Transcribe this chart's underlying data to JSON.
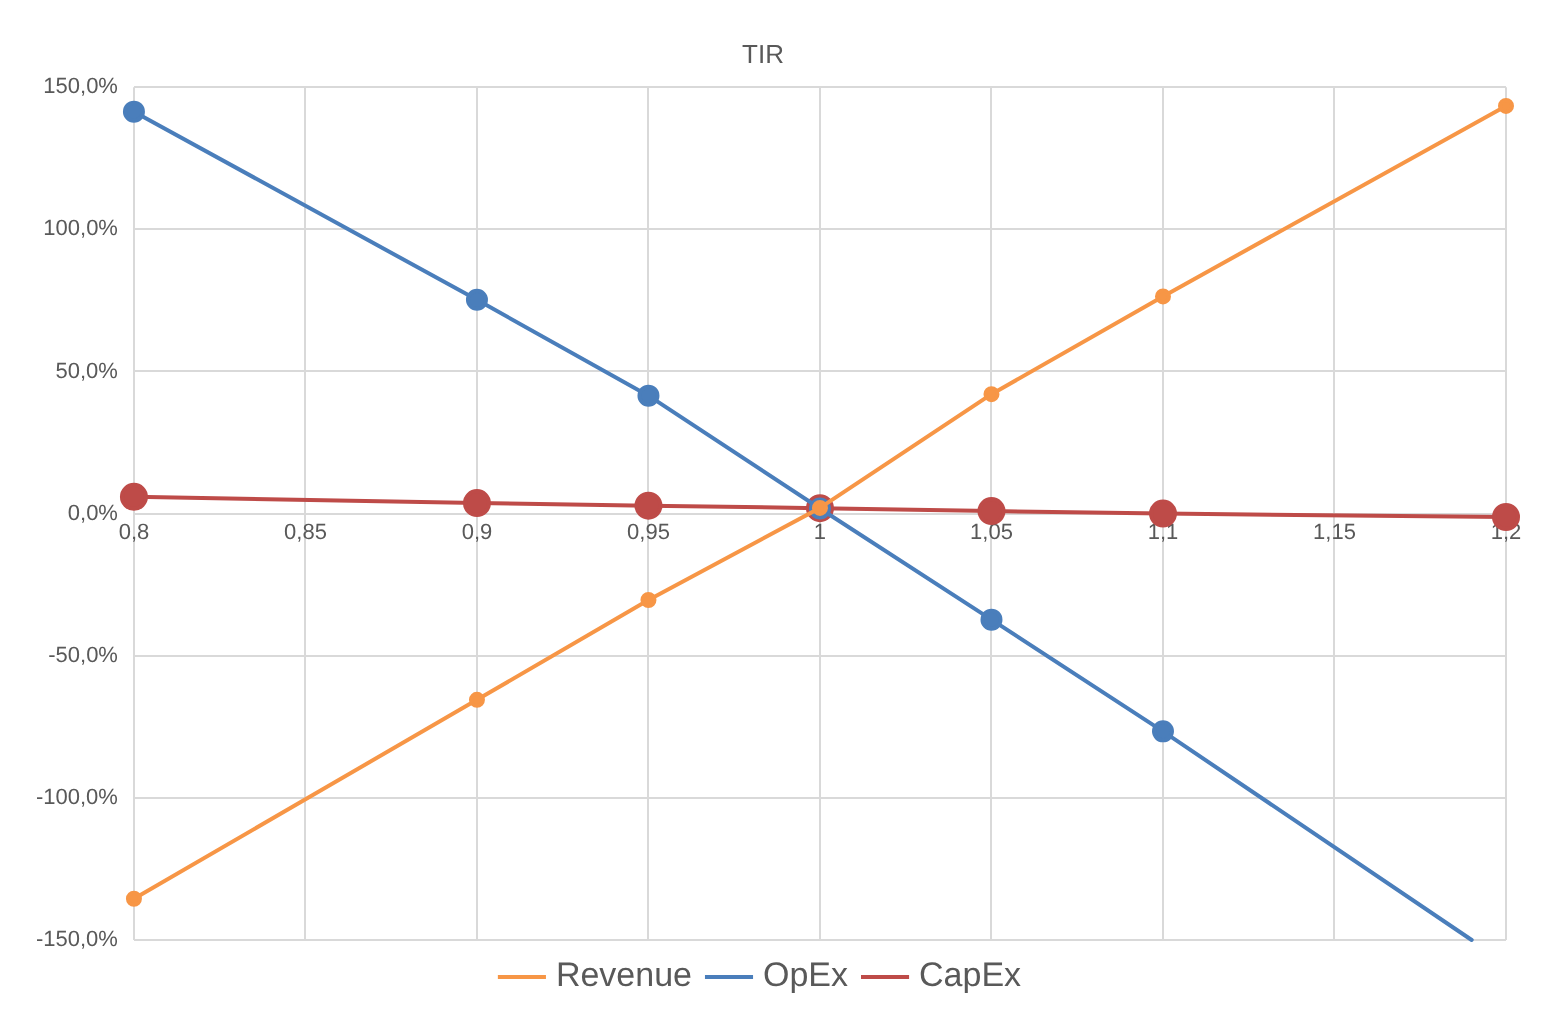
{
  "chart_data": {
    "type": "line",
    "title": "TIR",
    "x": [
      0.8,
      0.9,
      0.95,
      1,
      1.05,
      1.1,
      1.2
    ],
    "series": [
      {
        "name": "Revenue",
        "color": "#f79646",
        "values": [
          -135.5,
          -65.5,
          -30.4,
          2,
          42,
          76.4,
          143.4
        ]
      },
      {
        "name": "OpEx",
        "color": "#4a7ebb",
        "x": [
          0.8,
          0.9,
          0.95,
          1,
          1.05,
          1.1,
          1.19
        ],
        "values": [
          141.4,
          75.2,
          41.5,
          1.8,
          -37.3,
          -76.6,
          -150
        ]
      },
      {
        "name": "CapEx",
        "color": "#be4b48",
        "values": [
          5.9,
          3.7,
          2.8,
          1.9,
          0.9,
          0,
          -1.2
        ]
      }
    ],
    "xlim": [
      0.8,
      1.2
    ],
    "xticks": [
      {
        "value": 0.8,
        "label": "0,8"
      },
      {
        "value": 0.85,
        "label": "0,85"
      },
      {
        "value": 0.9,
        "label": "0,9"
      },
      {
        "value": 0.95,
        "label": "0,95"
      },
      1,
      {
        "value": 1.05,
        "label": "1,05"
      },
      {
        "value": 1.1,
        "label": "1,1"
      },
      {
        "value": 1.15,
        "label": "1,15"
      },
      {
        "value": 1.2,
        "label": "1,2"
      }
    ],
    "ylim": [
      -150,
      150
    ],
    "yticks": [
      {
        "value": -150,
        "label": "-150,0%"
      },
      {
        "value": -100,
        "label": "-100,0%"
      },
      {
        "value": -50,
        "label": "-50,0%"
      },
      {
        "value": 0,
        "label": "0,0%"
      },
      {
        "value": 50,
        "label": "50,0%"
      },
      {
        "value": 100,
        "label": "100,0%"
      },
      {
        "value": 150,
        "label": "150,0%"
      }
    ],
    "grid": true,
    "legend": "bottom",
    "marker": "circle",
    "line_style": "solid"
  }
}
